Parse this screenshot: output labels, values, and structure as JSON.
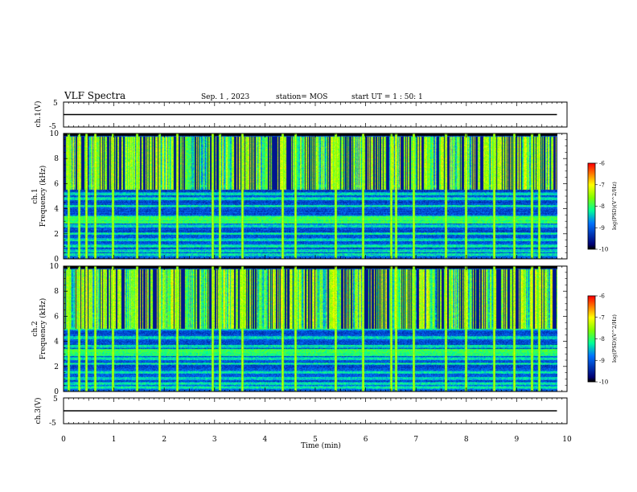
{
  "header": {
    "title": "VLF Spectra",
    "date": "Sep. 1 , 2023",
    "station": "station= MOS",
    "start": "start  UT =  1 : 50: 1"
  },
  "chart_data": [
    {
      "type": "line",
      "name": "ch1-voltage",
      "ylabel": "ch.1(V)",
      "ylim": [
        -5,
        5
      ],
      "yticks": [
        "5",
        "-5"
      ],
      "x": [
        0,
        9.8
      ],
      "values": [
        0,
        0
      ]
    },
    {
      "type": "heatmap",
      "name": "ch1-spectrogram",
      "ylabel": "ch.1\nFrequency (kHz)",
      "ylim": [
        0,
        10
      ],
      "yticks": [
        "0",
        "2",
        "4",
        "6",
        "8",
        "10"
      ],
      "xlim": [
        0,
        10
      ],
      "data_x_end": 9.8,
      "sferic_times": [
        0.1,
        0.3,
        0.45,
        0.62,
        0.98,
        1.45,
        1.9,
        2.25,
        2.95,
        3.1,
        3.55,
        4.35,
        4.6,
        5.4,
        5.95,
        6.5,
        6.6,
        6.95,
        7.6,
        8.0,
        8.55,
        8.95,
        9.3,
        9.45
      ],
      "whistler_band_khz": [
        5.5,
        9.8
      ],
      "steady_lines_khz": [
        0.3,
        0.6,
        1.0,
        1.5,
        2.0,
        2.6,
        3.0,
        3.3,
        4.2,
        4.8,
        5.2,
        5.8
      ],
      "colorbar": {
        "label": "log(PSD)(V^2/Hz)",
        "range": [
          -10,
          -6
        ],
        "ticks": [
          "-6",
          "-7",
          "-8",
          "-9",
          "-10"
        ]
      }
    },
    {
      "type": "heatmap",
      "name": "ch2-spectrogram",
      "ylabel": "ch.2\nFrequency (kHz)",
      "ylim": [
        0,
        10
      ],
      "yticks": [
        "0",
        "2",
        "4",
        "6",
        "8",
        "10"
      ],
      "xlim": [
        0,
        10
      ],
      "data_x_end": 9.8,
      "sferic_times": [
        0.1,
        0.3,
        0.45,
        0.62,
        0.98,
        1.45,
        1.9,
        2.25,
        2.95,
        3.1,
        3.55,
        4.35,
        4.6,
        5.4,
        5.95,
        6.5,
        6.6,
        6.95,
        7.6,
        8.0,
        8.55,
        8.95,
        9.3,
        9.45
      ],
      "whistler_band_khz": [
        5.0,
        9.8
      ],
      "steady_lines_khz": [
        0.3,
        0.6,
        1.0,
        1.5,
        2.2,
        2.6,
        3.15,
        3.6,
        4.3,
        5.0,
        5.8,
        6.2
      ],
      "colorbar": {
        "label": "log(PSD)(V^2/Hz)",
        "range": [
          -10,
          -6
        ],
        "ticks": [
          "-6",
          "-7",
          "-8",
          "-9",
          "-10"
        ]
      }
    },
    {
      "type": "line",
      "name": "ch3-voltage",
      "ylabel": "ch.3(V)",
      "ylim": [
        -5,
        5
      ],
      "yticks": [
        "5",
        "-5"
      ],
      "x": [
        0,
        9.8
      ],
      "values": [
        0,
        0
      ]
    }
  ],
  "xaxis": {
    "label": "Time  (min)",
    "ticks": [
      "0",
      "1",
      "2",
      "3",
      "4",
      "5",
      "6",
      "7",
      "8",
      "9",
      "10"
    ],
    "range": [
      0,
      10
    ]
  },
  "colors": {
    "background": "#ffffff",
    "axes": "#000000",
    "colormap": [
      "#000000",
      "#0000b0",
      "#0040ff",
      "#00c0ff",
      "#00ff80",
      "#80ff00",
      "#ffff00",
      "#ff8000",
      "#ff0000",
      "#ffffff"
    ]
  }
}
